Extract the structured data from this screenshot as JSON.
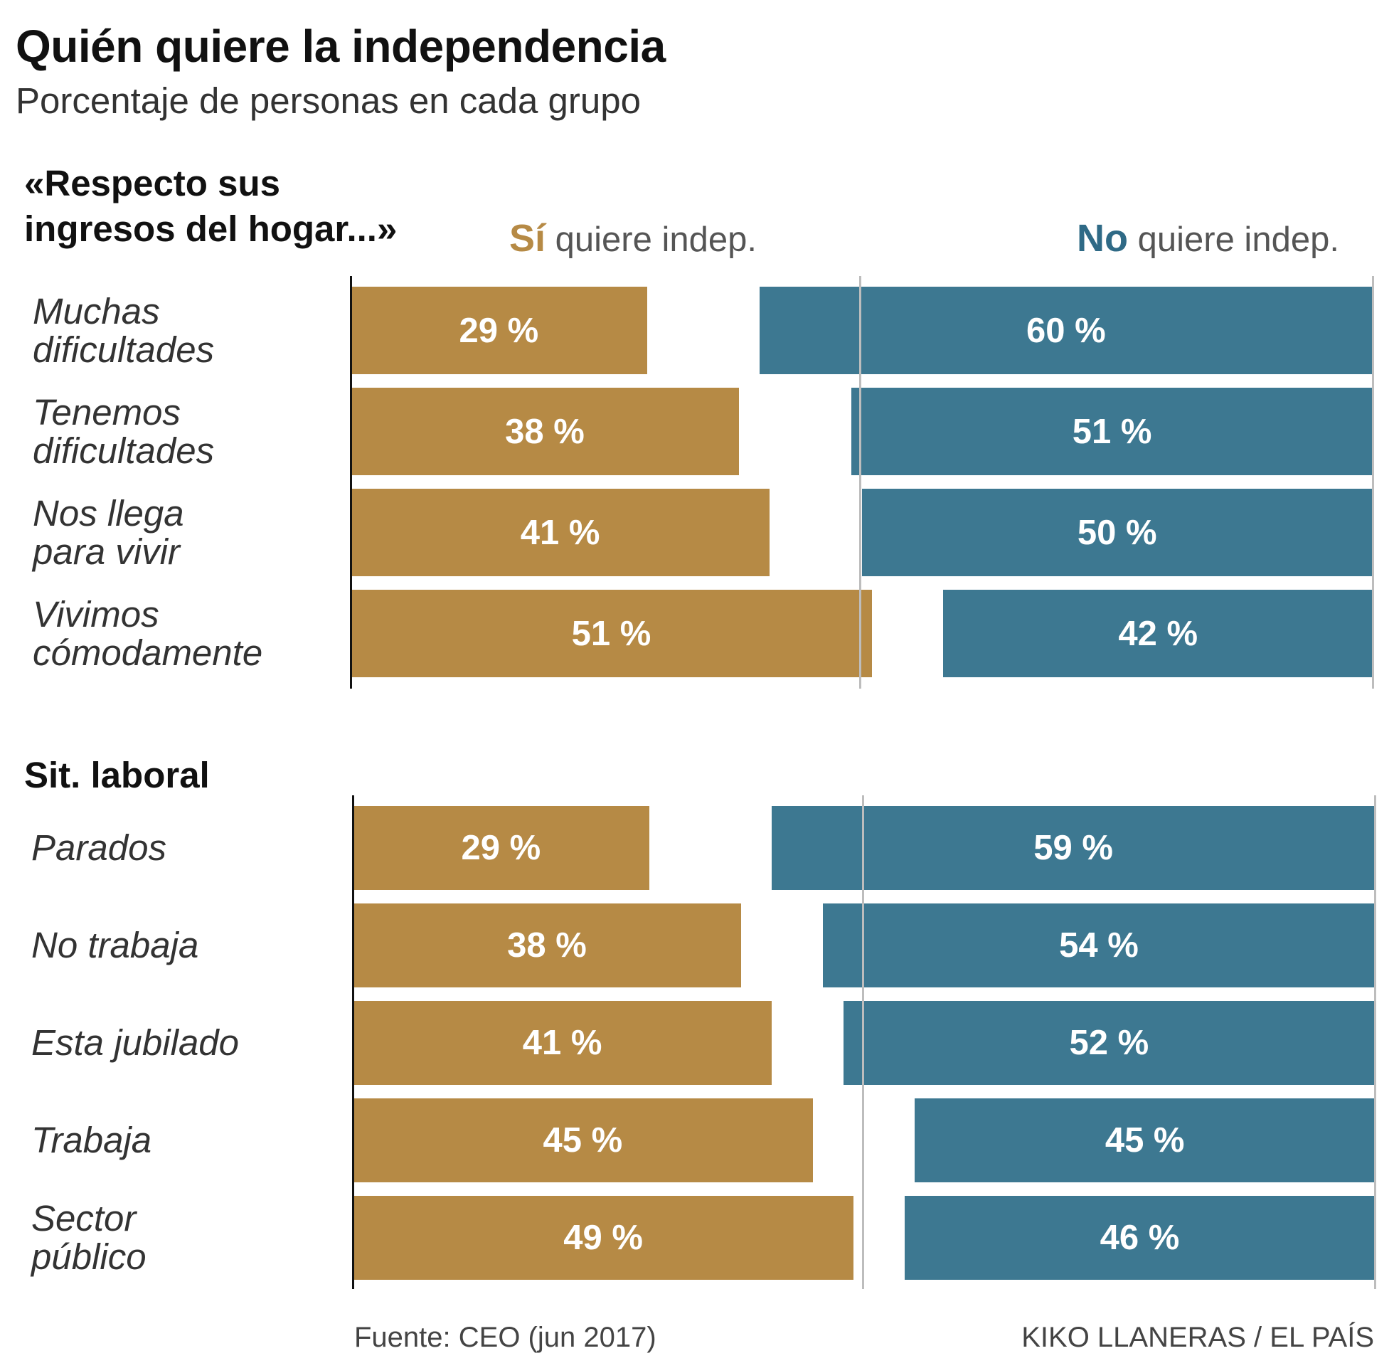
{
  "title": "Quién quiere la independencia",
  "subtitle": "Porcentaje de personas en cada grupo",
  "legend": {
    "yes_strong": "Sí",
    "yes_rest": "quiere indep.",
    "no_strong": "No",
    "no_rest": "quiere indep."
  },
  "colors": {
    "yes": "#b68a45",
    "no": "#3d7891",
    "yes_text": "#b68a45",
    "no_text": "#2f6a86"
  },
  "chart_data": [
    {
      "type": "bar",
      "title": "«Respecto sus ingresos del hogar...»",
      "categories": [
        "Muchas\ndificultades",
        "Tenemos\ndificultades",
        "Nos llega\npara vivir",
        "Vivimos\ncómodamente"
      ],
      "series": [
        {
          "name": "Sí quiere indep.",
          "values": [
            29,
            38,
            41,
            51
          ],
          "labels": [
            "29 %",
            "38 %",
            "41 %",
            "51 %"
          ]
        },
        {
          "name": "No quiere indep.",
          "values": [
            60,
            51,
            50,
            42
          ],
          "labels": [
            "60 %",
            "51 %",
            "50 %",
            "42 %"
          ]
        }
      ],
      "ylim": [
        0,
        100
      ],
      "legend": "top-right"
    },
    {
      "type": "bar",
      "title": "Sit. laboral",
      "categories": [
        "Parados",
        "No trabaja",
        "Esta jubilado",
        "Trabaja",
        "Sector\npúblico"
      ],
      "series": [
        {
          "name": "Sí quiere indep.",
          "values": [
            29,
            38,
            41,
            45,
            49
          ],
          "labels": [
            "29 %",
            "38 %",
            "41 %",
            "45 %",
            "49 %"
          ]
        },
        {
          "name": "No quiere indep.",
          "values": [
            59,
            54,
            52,
            45,
            46
          ],
          "labels": [
            "59 %",
            "54 %",
            "52 %",
            "45 %",
            "46 %"
          ]
        }
      ],
      "ylim": [
        0,
        100
      ]
    }
  ],
  "footer": {
    "source": "Fuente: CEO (jun 2017)",
    "credit": "KIKO LLANERAS / EL PAÍS"
  }
}
